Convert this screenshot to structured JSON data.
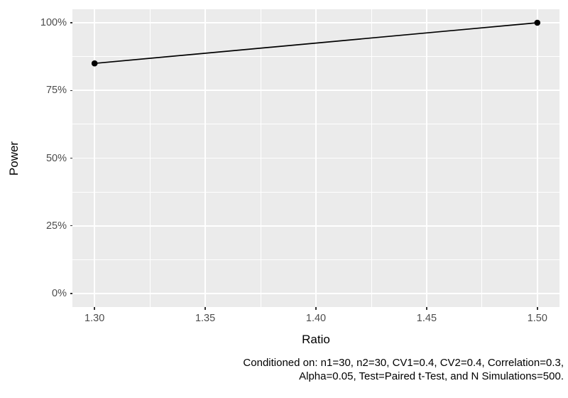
{
  "figure": {
    "y_axis_title": "Power",
    "x_axis_title": "Ratio",
    "caption_line1": "Conditioned on: n1=30, n2=30, CV1=0.4, CV2=0.4, Correlation=0.3,",
    "caption_line2": "Alpha=0.05, Test=Paired t-Test, and N Simulations=500."
  },
  "chart_data": {
    "type": "line",
    "title": "",
    "xlabel": "Ratio",
    "ylabel": "Power",
    "x": [
      1.3,
      1.5
    ],
    "y": [
      0.85,
      1.0
    ],
    "y_display": [
      "85%",
      "100%"
    ],
    "xlim": [
      1.3,
      1.5
    ],
    "ylim": [
      0,
      1
    ],
    "axis_expansion_fraction": 0.05,
    "x_major_ticks": [
      1.3,
      1.35,
      1.4,
      1.45,
      1.5
    ],
    "x_tick_labels": [
      "1.30",
      "1.35",
      "1.40",
      "1.45",
      "1.50"
    ],
    "x_minor_ticks": [
      1.325,
      1.375,
      1.425,
      1.475
    ],
    "y_major_ticks": [
      0,
      0.25,
      0.5,
      0.75,
      1.0
    ],
    "y_tick_labels": [
      "0%",
      "25%",
      "50%",
      "75%",
      "100%"
    ],
    "y_minor_ticks": [
      0.125,
      0.375,
      0.625,
      0.875
    ],
    "grid": true,
    "legend": "none",
    "caption": "Conditioned on: n1=30, n2=30, CV1=0.4, CV2=0.4, Correlation=0.3, Alpha=0.05, Test=Paired t-Test, and N Simulations=500.",
    "colors": {
      "figure_background": "#FFFFFF",
      "panel_background": "#EBEBEB",
      "gridline": "#FFFFFF",
      "line": "#000000",
      "point": "#000000",
      "tick_label": "#4D4D4D",
      "tick_mark": "#333333",
      "axis_title": "#000000",
      "caption": "#000000"
    }
  }
}
